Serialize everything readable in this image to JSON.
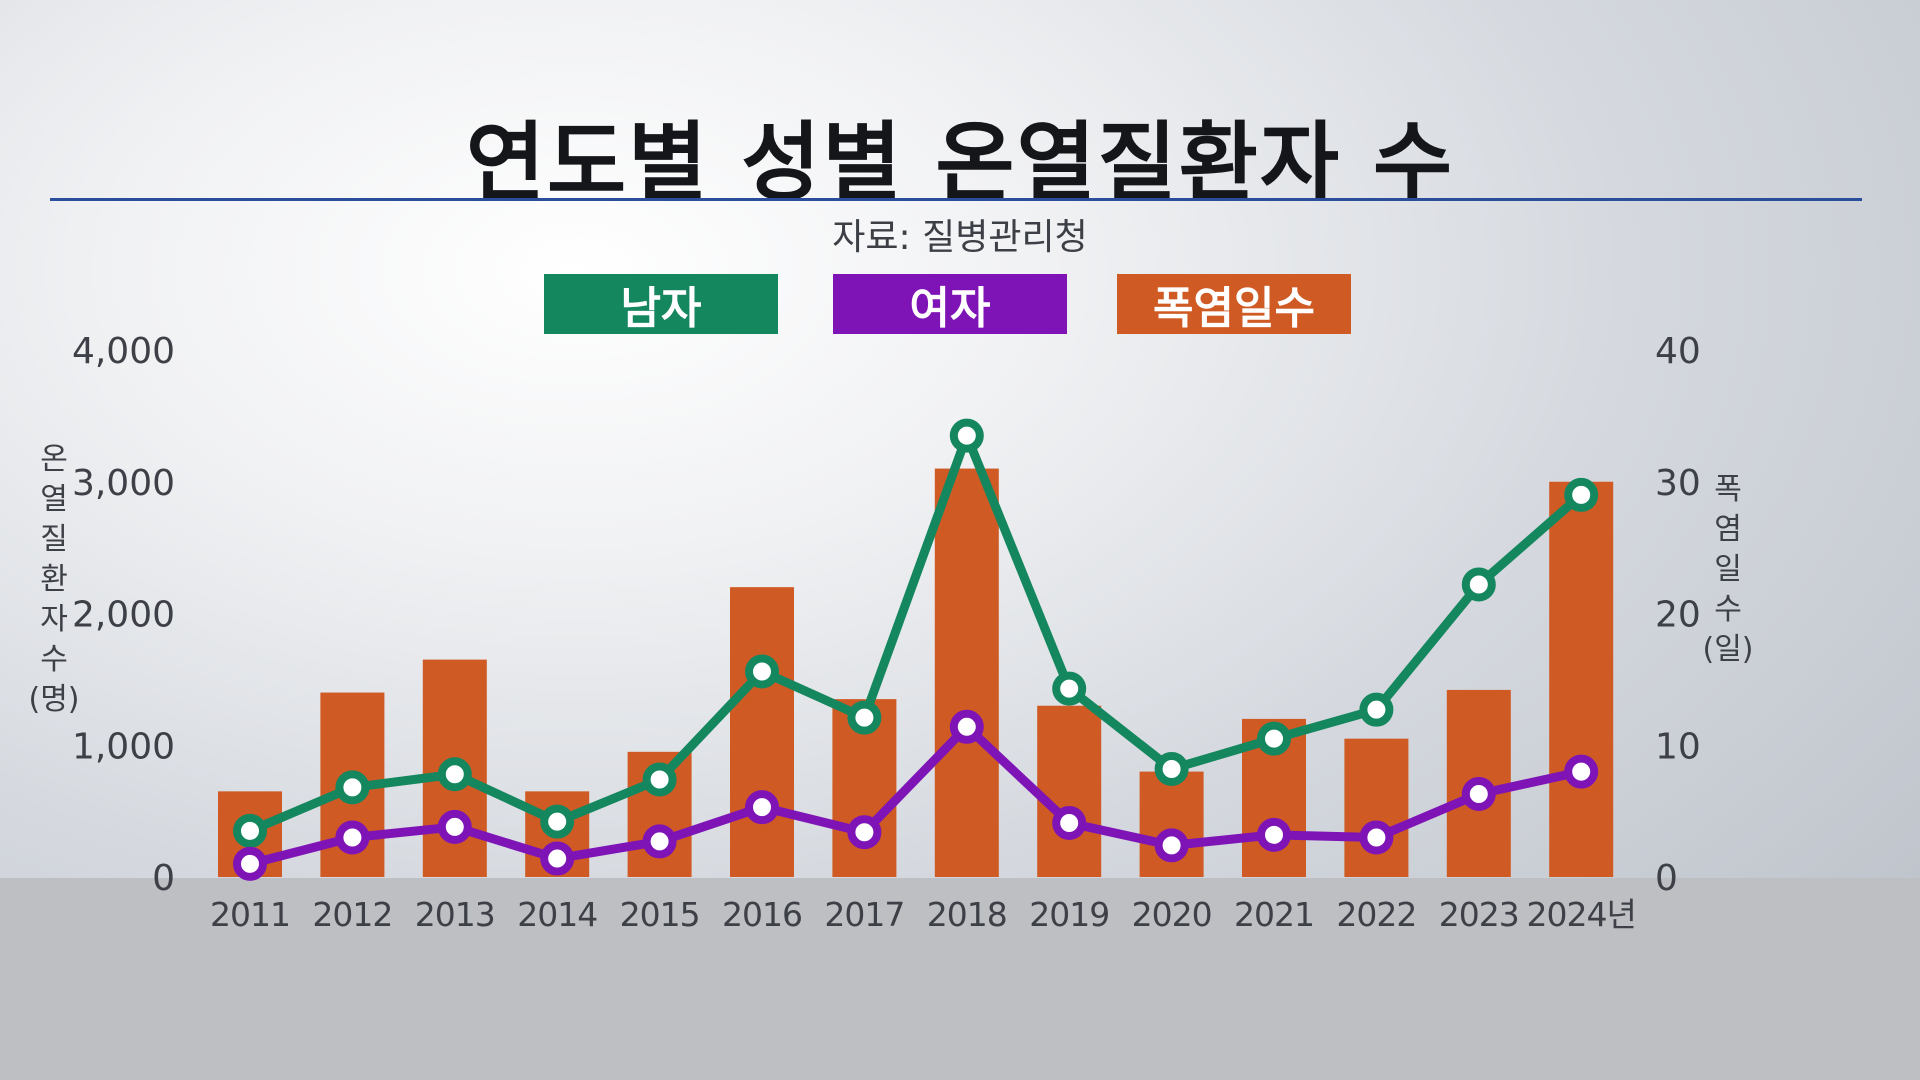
{
  "title": "연도별 성별 온열질환자 수",
  "source": "자료: 질병관리청",
  "legend": [
    {
      "label": "남자",
      "color": "#15875f"
    },
    {
      "label": "여자",
      "color": "#7f14b6"
    },
    {
      "label": "폭염일수",
      "color": "#d05a24"
    }
  ],
  "left_axis_title": [
    "온",
    "열",
    "질",
    "환",
    "자",
    "수",
    "(명)"
  ],
  "right_axis_title": [
    "폭",
    "염",
    "일",
    "수",
    "(일)"
  ],
  "chart_data": {
    "type": "bar",
    "title": "연도별 성별 온열질환자 수",
    "categories": [
      "2011",
      "2012",
      "2013",
      "2014",
      "2015",
      "2016",
      "2017",
      "2018",
      "2019",
      "2020",
      "2021",
      "2022",
      "2023",
      "2024년"
    ],
    "left_axis": {
      "label": "온열질환자 수 (명)",
      "ticks": [
        "0",
        "1,000",
        "2,000",
        "3,000",
        "4,000"
      ],
      "range": [
        0,
        4000
      ]
    },
    "right_axis": {
      "label": "폭염일수 (일)",
      "ticks": [
        "0",
        "10",
        "20",
        "30",
        "40"
      ],
      "range": [
        0,
        40
      ]
    },
    "series": [
      {
        "name": "폭염일수",
        "type": "bar",
        "axis": "right",
        "color": "#d05a24",
        "values": [
          6.5,
          14.0,
          16.5,
          6.5,
          9.5,
          22.0,
          13.5,
          31.0,
          13.0,
          8.0,
          12.0,
          10.5,
          14.2,
          30.0
        ]
      },
      {
        "name": "남자",
        "type": "line",
        "axis": "left",
        "color": "#15875f",
        "values": [
          350,
          680,
          780,
          420,
          740,
          1560,
          1210,
          3350,
          1430,
          820,
          1050,
          1270,
          2220,
          2900
        ]
      },
      {
        "name": "여자",
        "type": "line",
        "axis": "left",
        "color": "#7f14b6",
        "values": [
          100,
          300,
          380,
          140,
          270,
          530,
          340,
          1140,
          410,
          240,
          320,
          300,
          630,
          800
        ]
      }
    ],
    "grid": false,
    "legend_position": "top-center"
  }
}
